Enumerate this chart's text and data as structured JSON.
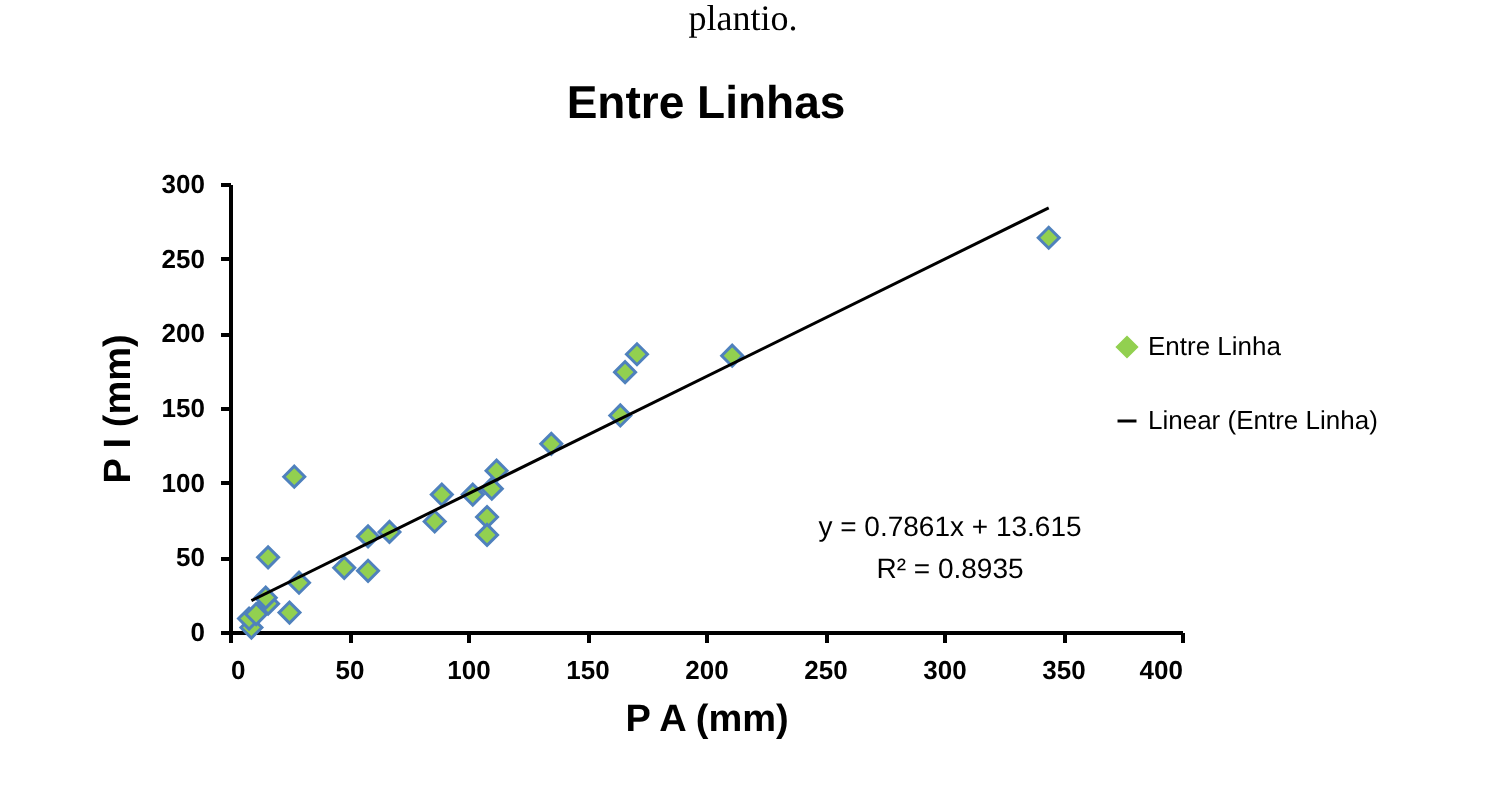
{
  "chart_data": {
    "type": "scatter",
    "title": "Entre Linhas",
    "xlabel": "P A (mm)",
    "ylabel": "P I (mm)",
    "xlim": [
      0,
      400
    ],
    "xticks": [
      0,
      50,
      100,
      150,
      200,
      250,
      300,
      350,
      400
    ],
    "ylim": [
      0,
      300
    ],
    "yticks": [
      0,
      50,
      100,
      150,
      200,
      250,
      300
    ],
    "grid": false,
    "legend": "right",
    "annotations": [
      "y = 0.7861x + 13.615",
      "R² = 0.8935",
      "plantio."
    ],
    "series": [
      {
        "name": "Entre Linha",
        "type": "scatter",
        "marker": "diamond",
        "color": "#92d050",
        "x": [
          9,
          8,
          11,
          16,
          15,
          16,
          25,
          27,
          29,
          48,
          58,
          58,
          67,
          86,
          89,
          102,
          110,
          108,
          108,
          112,
          135,
          164,
          166,
          171,
          211,
          344
        ],
        "values": [
          3,
          9,
          12,
          19,
          23,
          50,
          13,
          104,
          33,
          43,
          41,
          64,
          67,
          74,
          92,
          92,
          96,
          77,
          65,
          108,
          126,
          145,
          174,
          186,
          185,
          264
        ]
      },
      {
        "name": "Linear (Entre Linha)",
        "type": "line",
        "color": "#000000",
        "marker": "none",
        "line_style": "solid",
        "x": [
          9,
          344
        ],
        "values": [
          21,
          284
        ]
      }
    ]
  }
}
